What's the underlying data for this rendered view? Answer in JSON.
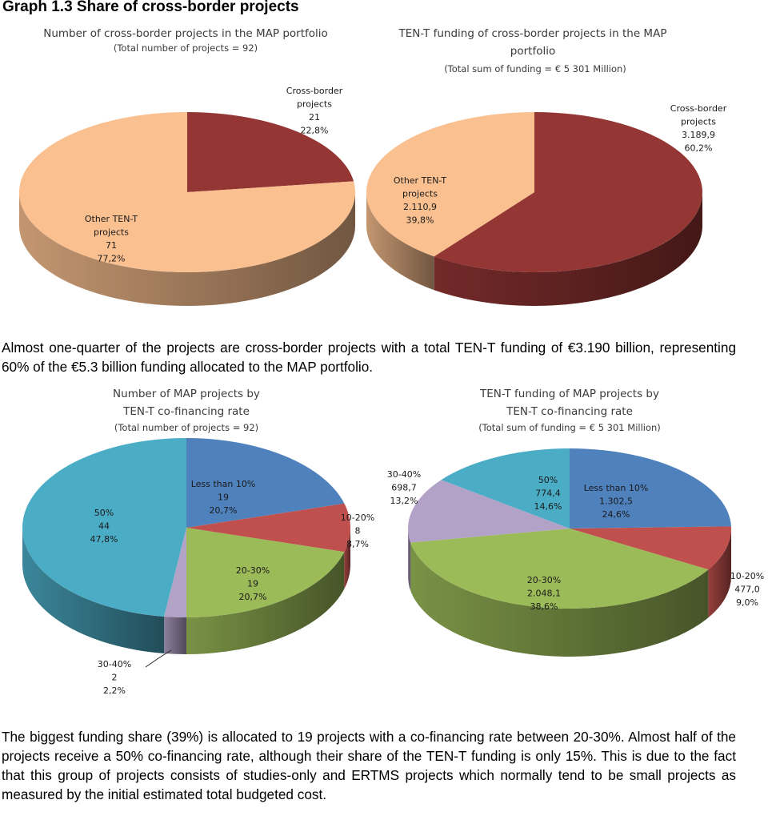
{
  "heading": "Graph 1.3  Share of cross-border projects",
  "paragraph1": "Almost one-quarter of the projects are cross-border projects with a total TEN-T funding of €3.190 billion, representing 60% of the €5.3 billion funding allocated to the MAP portfolio.",
  "paragraph2": "The biggest funding share (39%) is allocated to 19 projects with a co-financing rate between 20-30%. Almost half of the projects receive a 50% co-financing rate, although their share of the TEN-T funding is only 15%. This is due to the fact that this group of projects consists of studies-only and ERTMS projects which normally tend to be small projects as measured by the initial estimated total budgeted cost.",
  "chart_data": [
    {
      "type": "pie",
      "title": [
        "Number of cross-border projects in the MAP portfolio"
      ],
      "subtitle": "(Total number of projects = 92)",
      "slices": [
        {
          "name": "Cross-border projects",
          "value": 21,
          "value_label": "21",
          "percent": "22,8%",
          "color": "#943634",
          "label_lines": [
            "Cross-border",
            "projects",
            "21",
            "22,8%"
          ]
        },
        {
          "name": "Other TEN-T projects",
          "value": 71,
          "value_label": "71",
          "percent": "77,2%",
          "color": "#fac090",
          "label_lines": [
            "Other TEN-T",
            "projects",
            "71",
            "77,2%"
          ]
        }
      ]
    },
    {
      "type": "pie",
      "title": [
        "TEN-T funding of cross-border projects in the MAP",
        "portfolio"
      ],
      "subtitle": "(Total sum of funding = € 5 301 Million)",
      "slices": [
        {
          "name": "Cross-border projects",
          "value": 3189.9,
          "value_label": "3.189,9",
          "percent": "60,2%",
          "color": "#943634",
          "label_lines": [
            "Cross-border",
            "projects",
            "3.189,9",
            "60,2%"
          ]
        },
        {
          "name": "Other TEN-T projects",
          "value": 2110.9,
          "value_label": "2.110,9",
          "percent": "39,8%",
          "color": "#fac090",
          "label_lines": [
            "Other TEN-T",
            "projects",
            "2.110,9",
            "39,8%"
          ]
        }
      ]
    },
    {
      "type": "pie",
      "title": [
        "Number of MAP projects by",
        "TEN-T co-financing rate"
      ],
      "subtitle": "(Total number of projects = 92)",
      "slices": [
        {
          "name": "Less than 10%",
          "value": 19,
          "value_label": "19",
          "percent": "20,7%",
          "color": "#4f81bd",
          "label_lines": [
            "Less than 10%",
            "19",
            "20,7%"
          ]
        },
        {
          "name": "10-20%",
          "value": 8,
          "value_label": "8",
          "percent": "8,7%",
          "color": "#c0504d",
          "label_lines": [
            "10-20%",
            "8",
            "8,7%"
          ]
        },
        {
          "name": "20-30%",
          "value": 19,
          "value_label": "19",
          "percent": "20,7%",
          "color": "#9bbb59",
          "label_lines": [
            "20-30%",
            "19",
            "20,7%"
          ]
        },
        {
          "name": "30-40%",
          "value": 2,
          "value_label": "2",
          "percent": "2,2%",
          "color": "#b3a2c7",
          "label_lines": [
            "30-40%",
            "2",
            "2,2%"
          ]
        },
        {
          "name": "50%",
          "value": 44,
          "value_label": "44",
          "percent": "47,8%",
          "color": "#4bacc6",
          "label_lines": [
            "50%",
            "44",
            "47,8%"
          ]
        }
      ]
    },
    {
      "type": "pie",
      "title": [
        "TEN-T funding of MAP projects by",
        "TEN-T co-financing rate"
      ],
      "subtitle": "(Total sum of funding = € 5 301 Million)",
      "slices": [
        {
          "name": "Less than 10%",
          "value": 1302.5,
          "value_label": "1.302,5",
          "percent": "24,6%",
          "color": "#4f81bd",
          "label_lines": [
            "Less than 10%",
            "1.302,5",
            "24,6%"
          ]
        },
        {
          "name": "10-20%",
          "value": 477.0,
          "value_label": "477,0",
          "percent": "9,0%",
          "color": "#c0504d",
          "label_lines": [
            "10-20%",
            "477,0",
            "9,0%"
          ]
        },
        {
          "name": "20-30%",
          "value": 2048.1,
          "value_label": "2.048,1",
          "percent": "38,6%",
          "color": "#9bbb59",
          "label_lines": [
            "20-30%",
            "2.048,1",
            "38,6%"
          ]
        },
        {
          "name": "30-40%",
          "value": 698.7,
          "value_label": "698,7",
          "percent": "13,2%",
          "color": "#b3a2c7",
          "label_lines": [
            "30-40%",
            "698,7",
            "13,2%"
          ]
        },
        {
          "name": "50%",
          "value": 774.4,
          "value_label": "774,4",
          "percent": "14,6%",
          "color": "#4bacc6",
          "label_lines": [
            "50%",
            "774,4",
            "14,6%"
          ]
        }
      ]
    }
  ]
}
